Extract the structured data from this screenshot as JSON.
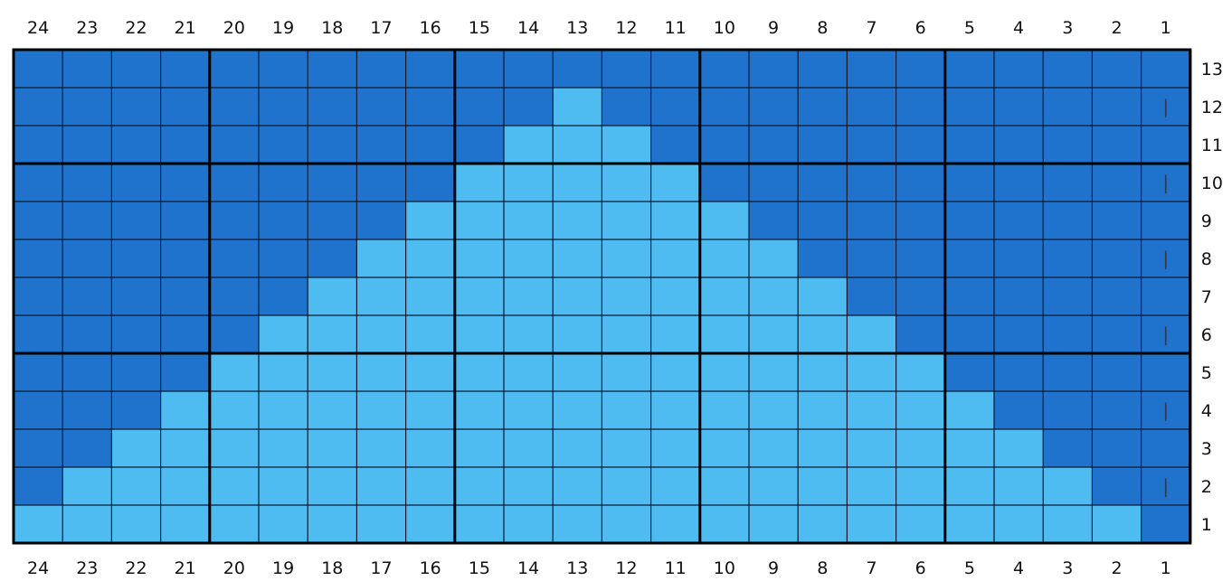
{
  "chart_data": {
    "type": "heatmap",
    "columns_top": [
      "24",
      "23",
      "22",
      "21",
      "20",
      "19",
      "18",
      "17",
      "16",
      "15",
      "14",
      "13",
      "12",
      "11",
      "10",
      "9",
      "8",
      "7",
      "6",
      "5",
      "4",
      "3",
      "2",
      "1"
    ],
    "columns_bottom": [
      "24",
      "23",
      "22",
      "21",
      "20",
      "19",
      "18",
      "17",
      "16",
      "15",
      "14",
      "13",
      "12",
      "11",
      "10",
      "9",
      "8",
      "7",
      "6",
      "5",
      "4",
      "3",
      "2",
      "1"
    ],
    "rows_right": [
      "13",
      "12",
      "11",
      "10",
      "9",
      "8",
      "7",
      "6",
      "5",
      "4",
      "3",
      "2",
      "1"
    ],
    "colors": {
      "dark": "#1f73cc",
      "light": "#4ebcf1",
      "grid_line": "#0f1b33",
      "bold_line": "#000000",
      "mark": "#2a3b56"
    },
    "grid_rows": [
      "DDDDDDDDDDDDDDDDDDDDDDDD",
      "DDDDDDDDDDDLDDDDDDDDDDDD",
      "DDDDDDDDDDLLLDDDDDDDDDDD",
      "DDDDDDDDDLLLLLDDDDDDDDDD",
      "DDDDDDDDLLLLLLLDDDDDDDDD",
      "DDDDDDDLLLLLLLLLDDDDDDDD",
      "DDDDDDLLLLLLLLLLLDDDDDDD",
      "DDDDDLLLLLLLLLLLLLDDDDDD",
      "DDDDLLLLLLLLLLLLLLLDDDDD",
      "DDDLLLLLLLLLLLLLLLLLDDDD",
      "DDLLLLLLLLLLLLLLLLLLLDDD",
      "DLLLLLLLLLLLLLLLLLLLLLDD",
      "LLLLLLLLLLLLLLLLLLLLLLLD"
    ],
    "mark_rows": [
      "12",
      "10",
      "8",
      "6",
      "4",
      "2"
    ],
    "mark_column": "1",
    "mark_symbol": "|"
  }
}
